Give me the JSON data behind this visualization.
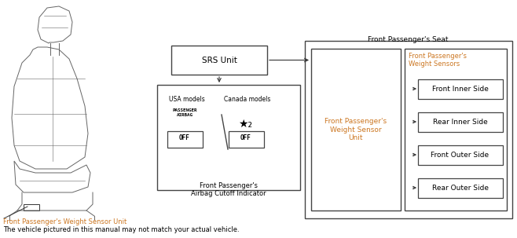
{
  "bg_color": "#ffffff",
  "text_color": "#000000",
  "orange_color": "#cc7722",
  "box_edge_color": "#444444",
  "arrow_color": "#333333",
  "srs_label": "SRS Unit",
  "weight_sensor_unit_label": "Front Passenger's\nWeight Sensor\nUnit",
  "weight_sensors_label": "Front Passenger's\nWeight Sensors",
  "fps_seat_label": "Front Passenger's Seat",
  "sensor_boxes": [
    "Front Inner Side",
    "Rear Inner Side",
    "Front Outer Side",
    "Rear Outer Side"
  ],
  "airbag_indicator_label": "Front Passenger's\nAirbag Cutoff Indicator",
  "usa_label": "USA models",
  "canada_label": "Canada models",
  "off_label": "OFF",
  "passenger_airbag_label": "PASSENGER\nAIRBAG",
  "bottom_note": "Front Passenger's Weight Sensor Unit",
  "bottom_note2": "The vehicle pictured in this manual may not match your actual vehicle.",
  "fontsize_main": 7.5,
  "fontsize_small": 6.5,
  "fontsize_tiny": 5.5,
  "fontsize_off": 6.0,
  "fontsize_airbag": 4.5,
  "seat_color": "#666666",
  "seat_lw": 0.7
}
